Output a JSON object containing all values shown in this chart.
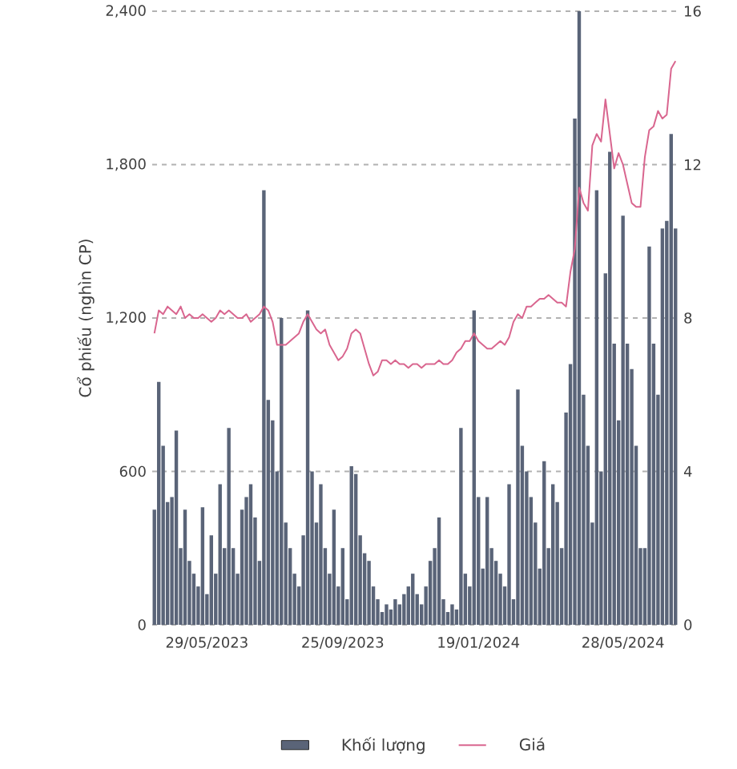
{
  "chart_data": {
    "type": "bar",
    "ylabel": "Cổ phiếu (nghìn CP)",
    "categories": [
      null,
      null,
      null,
      null,
      null,
      null,
      null,
      null,
      null,
      null,
      null,
      null,
      "29/05/2023",
      null,
      null,
      null,
      null,
      null,
      null,
      null,
      null,
      null,
      null,
      null,
      null,
      null,
      null,
      null,
      null,
      null,
      null,
      null,
      null,
      null,
      null,
      null,
      null,
      null,
      null,
      null,
      null,
      null,
      null,
      "25/09/2023",
      null,
      null,
      null,
      null,
      null,
      null,
      null,
      null,
      null,
      null,
      null,
      null,
      null,
      null,
      null,
      null,
      null,
      null,
      null,
      null,
      null,
      null,
      null,
      null,
      null,
      null,
      null,
      null,
      null,
      null,
      "19/01/2024",
      null,
      null,
      null,
      null,
      null,
      null,
      null,
      null,
      null,
      null,
      null,
      null,
      null,
      null,
      null,
      null,
      null,
      null,
      null,
      null,
      null,
      null,
      null,
      null,
      null,
      null,
      null,
      null,
      null,
      null,
      null,
      null,
      "28/05/2024",
      null,
      null,
      null,
      null,
      null,
      null,
      null,
      null,
      null,
      null,
      null,
      null
    ],
    "series": [
      {
        "name": "Khối lượng",
        "color": "#5a6478",
        "values": [
          450,
          950,
          700,
          480,
          500,
          760,
          300,
          450,
          250,
          200,
          150,
          460,
          120,
          350,
          200,
          550,
          300,
          770,
          300,
          200,
          450,
          500,
          550,
          420,
          250,
          1700,
          880,
          800,
          600,
          1200,
          400,
          300,
          200,
          150,
          350,
          1230,
          600,
          400,
          550,
          300,
          200,
          450,
          150,
          300,
          100,
          620,
          590,
          350,
          280,
          250,
          150,
          100,
          50,
          80,
          60,
          100,
          80,
          120,
          150,
          200,
          120,
          80,
          150,
          250,
          300,
          420,
          100,
          50,
          80,
          60,
          770,
          200,
          150,
          1230,
          500,
          220,
          500,
          300,
          250,
          200,
          150,
          550,
          100,
          920,
          700,
          600,
          500,
          400,
          220,
          640,
          300,
          550,
          480,
          300,
          830,
          1020,
          1980,
          2400,
          900,
          700,
          400,
          1700,
          600,
          1375,
          1850,
          1100,
          800,
          1600,
          1100,
          1000,
          700,
          300,
          300,
          1480,
          1100,
          900,
          1550,
          1580,
          1920,
          1550
        ]
      },
      {
        "name": "Giá",
        "type": "line",
        "axis": "y2",
        "color": "#d9668f",
        "values": [
          7.6,
          8.2,
          8.1,
          8.3,
          8.2,
          8.1,
          8.3,
          8.0,
          8.1,
          8.0,
          8.0,
          8.1,
          8.0,
          7.9,
          8.0,
          8.2,
          8.1,
          8.2,
          8.1,
          8.0,
          8.0,
          8.1,
          7.9,
          8.0,
          8.1,
          8.3,
          8.2,
          7.9,
          7.3,
          7.3,
          7.3,
          7.4,
          7.5,
          7.6,
          7.9,
          8.1,
          7.9,
          7.7,
          7.6,
          7.7,
          7.3,
          7.1,
          6.9,
          7.0,
          7.2,
          7.6,
          7.7,
          7.6,
          7.2,
          6.8,
          6.5,
          6.6,
          6.9,
          6.9,
          6.8,
          6.9,
          6.8,
          6.8,
          6.7,
          6.8,
          6.8,
          6.7,
          6.8,
          6.8,
          6.8,
          6.9,
          6.8,
          6.8,
          6.9,
          7.1,
          7.2,
          7.4,
          7.4,
          7.6,
          7.4,
          7.3,
          7.2,
          7.2,
          7.3,
          7.4,
          7.3,
          7.5,
          7.9,
          8.1,
          8.0,
          8.3,
          8.3,
          8.4,
          8.5,
          8.5,
          8.6,
          8.5,
          8.4,
          8.4,
          8.3,
          9.2,
          9.8,
          11.4,
          11.0,
          10.8,
          12.5,
          12.8,
          12.6,
          13.7,
          12.8,
          11.9,
          12.3,
          12.0,
          11.5,
          11.0,
          10.9,
          10.9,
          12.2,
          12.9,
          13.0,
          13.4,
          13.2,
          13.3,
          14.5,
          14.7
        ]
      }
    ],
    "ylim": [
      0,
      2400
    ],
    "yticks": [
      0,
      600,
      {
        "value": 1200,
        "label": "1,200"
      },
      {
        "value": 1800,
        "label": "1,800"
      },
      {
        "value": 2400,
        "label": "2,400"
      }
    ],
    "y2lim": [
      0,
      16
    ],
    "y2ticks": [
      0,
      4,
      8,
      12,
      16
    ],
    "grid": "y",
    "legend": "bottom"
  }
}
